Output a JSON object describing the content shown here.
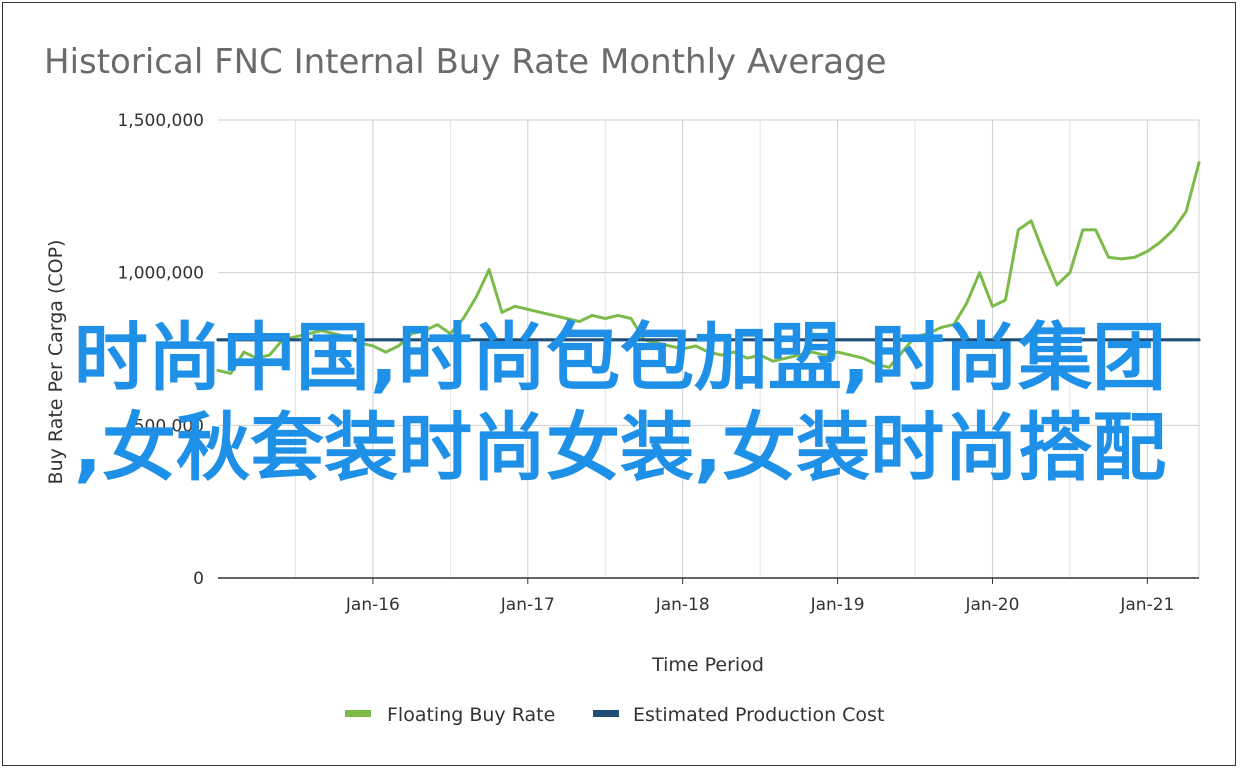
{
  "chart_data": {
    "type": "line",
    "title": "Historical FNC Internal Buy Rate Monthly Average",
    "xlabel": "Time Period",
    "ylabel": "Buy Rate Per Carga (COP)",
    "ylim": [
      0,
      1500000
    ],
    "y_ticks": [
      {
        "value": 0,
        "label": "0"
      },
      {
        "value": 500000,
        "label": "500,000"
      },
      {
        "value": 1000000,
        "label": "1,000,000"
      },
      {
        "value": 1500000,
        "label": "1,500,000"
      }
    ],
    "x_ticks": [
      {
        "date": "2016-01",
        "label": "Jan-16"
      },
      {
        "date": "2017-01",
        "label": "Jan-17"
      },
      {
        "date": "2018-01",
        "label": "Jan-18"
      },
      {
        "date": "2019-01",
        "label": "Jan-19"
      },
      {
        "date": "2020-01",
        "label": "Jan-20"
      },
      {
        "date": "2021-01",
        "label": "Jan-21"
      }
    ],
    "xlim": [
      "2015-01",
      "2021-05"
    ],
    "grid": true,
    "legend_position": "bottom",
    "series": [
      {
        "name": "Floating Buy Rate",
        "color": "#7cbb4a",
        "points": [
          [
            "2015-01",
            680000
          ],
          [
            "2015-02",
            670000
          ],
          [
            "2015-03",
            740000
          ],
          [
            "2015-04",
            720000
          ],
          [
            "2015-05",
            730000
          ],
          [
            "2015-06",
            780000
          ],
          [
            "2015-07",
            790000
          ],
          [
            "2015-08",
            800000
          ],
          [
            "2015-09",
            810000
          ],
          [
            "2015-10",
            800000
          ],
          [
            "2015-11",
            790000
          ],
          [
            "2015-12",
            770000
          ],
          [
            "2016-01",
            760000
          ],
          [
            "2016-02",
            740000
          ],
          [
            "2016-03",
            760000
          ],
          [
            "2016-04",
            800000
          ],
          [
            "2016-05",
            810000
          ],
          [
            "2016-06",
            830000
          ],
          [
            "2016-07",
            800000
          ],
          [
            "2016-08",
            850000
          ],
          [
            "2016-09",
            920000
          ],
          [
            "2016-10",
            1010000
          ],
          [
            "2016-11",
            870000
          ],
          [
            "2016-12",
            890000
          ],
          [
            "2017-01",
            880000
          ],
          [
            "2017-02",
            870000
          ],
          [
            "2017-03",
            860000
          ],
          [
            "2017-04",
            850000
          ],
          [
            "2017-05",
            840000
          ],
          [
            "2017-06",
            860000
          ],
          [
            "2017-07",
            850000
          ],
          [
            "2017-08",
            860000
          ],
          [
            "2017-09",
            850000
          ],
          [
            "2017-10",
            780000
          ],
          [
            "2017-11",
            770000
          ],
          [
            "2017-12",
            760000
          ],
          [
            "2018-01",
            750000
          ],
          [
            "2018-02",
            760000
          ],
          [
            "2018-03",
            740000
          ],
          [
            "2018-04",
            730000
          ],
          [
            "2018-05",
            740000
          ],
          [
            "2018-06",
            720000
          ],
          [
            "2018-07",
            730000
          ],
          [
            "2018-08",
            710000
          ],
          [
            "2018-09",
            720000
          ],
          [
            "2018-10",
            730000
          ],
          [
            "2018-11",
            740000
          ],
          [
            "2018-12",
            730000
          ],
          [
            "2019-01",
            740000
          ],
          [
            "2019-02",
            730000
          ],
          [
            "2019-03",
            720000
          ],
          [
            "2019-04",
            700000
          ],
          [
            "2019-05",
            690000
          ],
          [
            "2019-06",
            740000
          ],
          [
            "2019-07",
            790000
          ],
          [
            "2019-08",
            800000
          ],
          [
            "2019-09",
            820000
          ],
          [
            "2019-10",
            830000
          ],
          [
            "2019-11",
            900000
          ],
          [
            "2019-12",
            1000000
          ],
          [
            "2020-01",
            890000
          ],
          [
            "2020-02",
            910000
          ],
          [
            "2020-03",
            1140000
          ],
          [
            "2020-04",
            1170000
          ],
          [
            "2020-05",
            1060000
          ],
          [
            "2020-06",
            960000
          ],
          [
            "2020-07",
            1000000
          ],
          [
            "2020-08",
            1140000
          ],
          [
            "2020-09",
            1140000
          ],
          [
            "2020-10",
            1050000
          ],
          [
            "2020-11",
            1045000
          ],
          [
            "2020-12",
            1050000
          ],
          [
            "2021-01",
            1070000
          ],
          [
            "2021-02",
            1100000
          ],
          [
            "2021-03",
            1140000
          ],
          [
            "2021-04",
            1200000
          ],
          [
            "2021-05",
            1360000
          ]
        ]
      },
      {
        "name": "Estimated Production Cost",
        "color": "#1f4e79",
        "points": [
          [
            "2015-01",
            780000
          ],
          [
            "2021-05",
            780000
          ]
        ]
      }
    ]
  },
  "overlay_text": {
    "line1": "时尚中国,时尚包包加盟,时尚集团",
    "line2": ",女秋套装时尚女装,女装时尚搭配"
  }
}
